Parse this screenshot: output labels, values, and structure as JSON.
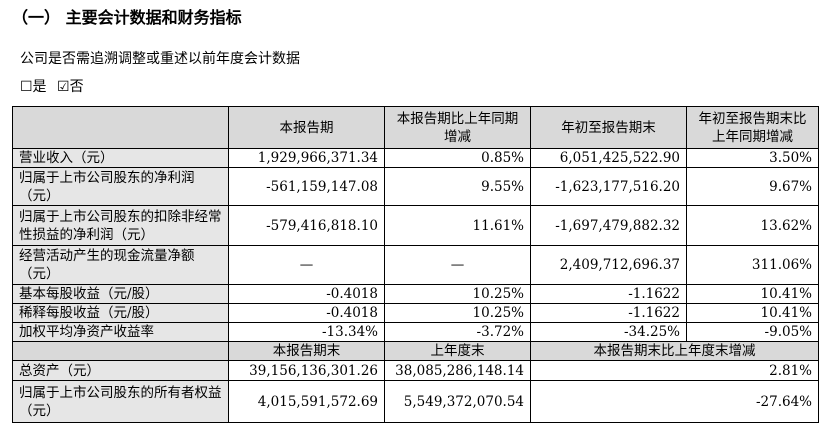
{
  "header": {
    "title": "（一） 主要会计数据和财务指标"
  },
  "question": "公司是否需追溯调整或重述以前年度会计数据",
  "options": [
    "☐是",
    "☑否"
  ],
  "table": {
    "header": [
      "本报告期",
      "本报告期比上年同期增减",
      "年初至报告期末",
      "年初至报告期末比上年同期增减"
    ],
    "rows": [
      [
        "营业收入（元）",
        "1,929,966,371.34",
        "0.85%",
        "6,051,425,522.90",
        "3.50%"
      ],
      [
        "归属于上市公司股东的净利润（元）",
        "-561,159,147.08",
        "9.55%",
        "-1,623,177,516.20",
        "9.67%"
      ],
      [
        "归属于上市公司股东的扣除非经常性损益的净利润（元）",
        "-579,416,818.10",
        "11.61%",
        "-1,697,479,882.32",
        "13.62%"
      ],
      [
        "经营活动产生的现金流量净额（元）",
        "—",
        "—",
        "2,409,712,696.37",
        "311.06%"
      ],
      [
        "基本每股收益（元/股）",
        "-0.4018",
        "10.25%",
        "-1.1622",
        "10.41%"
      ],
      [
        "稀释每股收益（元/股）",
        "-0.4018",
        "10.25%",
        "-1.1622",
        "10.41%"
      ],
      [
        "加权平均净资产收益率",
        "-13.34%",
        "-3.72%",
        "-34.25%",
        "-9.05%"
      ]
    ],
    "subheader": [
      "本报告期末",
      "上年度末",
      "本报告期末比上年度末增减"
    ],
    "rows2": [
      [
        "总资产（元）",
        "39,156,136,301.26",
        "38,085,286,148.14",
        "2.81%"
      ],
      [
        "归属于上市公司股东的所有者权益（元）",
        "4,015,591,572.69",
        "5,549,372,070.54",
        "-27.64%"
      ]
    ]
  }
}
